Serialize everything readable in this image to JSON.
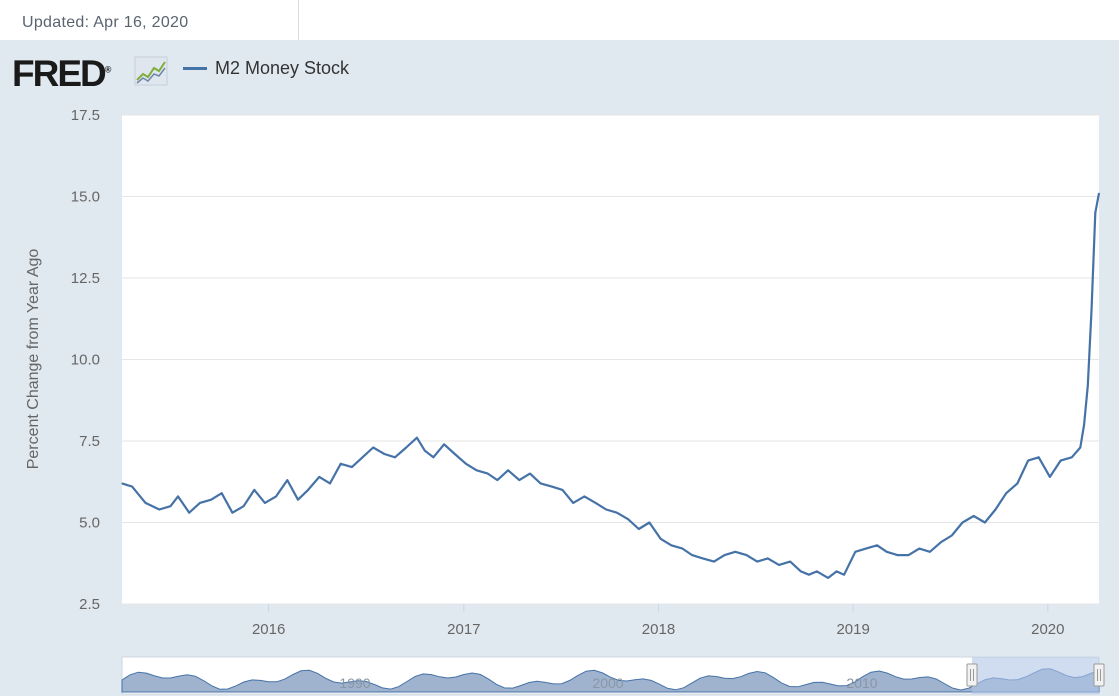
{
  "header": {
    "updated_text": "Updated: Apr 16, 2020"
  },
  "logo": {
    "text": "FRED",
    "registered": "®"
  },
  "icons": {
    "logo_graph": "line-graph-icon",
    "range_handle_left": "range-handle-icon",
    "range_handle_right": "range-handle-icon"
  },
  "colors": {
    "series": "#4572a7",
    "plot_background": "#ffffff",
    "page_background": "#e1e9f0",
    "grid": "#e6e6e6",
    "navigator_fill": "#9fb3cf",
    "navigator_selection": "#b0c4e6"
  },
  "chart_data": {
    "type": "line",
    "title": "",
    "ylabel": "Percent Change from Year Ago",
    "xlabel": "",
    "ylim": [
      2.5,
      17.5
    ],
    "xlim": [
      "2015-04-01",
      "2020-04-06"
    ],
    "grid": true,
    "legend_position": "top-left",
    "y_ticks": [
      "2.5",
      "5.0",
      "7.5",
      "10.0",
      "12.5",
      "15.0",
      "17.5"
    ],
    "x_ticks": [
      "2016",
      "2017",
      "2018",
      "2019",
      "2020"
    ],
    "series": [
      {
        "name": "M2 Money Stock",
        "x": [
          "2015-04-01",
          "2015-04-20",
          "2015-05-15",
          "2015-06-10",
          "2015-07-01",
          "2015-07-15",
          "2015-08-05",
          "2015-08-25",
          "2015-09-15",
          "2015-10-05",
          "2015-10-25",
          "2015-11-15",
          "2015-12-05",
          "2015-12-25",
          "2016-01-15",
          "2016-02-05",
          "2016-02-25",
          "2016-03-15",
          "2016-04-05",
          "2016-04-25",
          "2016-05-15",
          "2016-06-05",
          "2016-06-25",
          "2016-07-15",
          "2016-08-05",
          "2016-08-25",
          "2016-09-15",
          "2016-10-05",
          "2016-10-20",
          "2016-11-05",
          "2016-11-25",
          "2016-12-15",
          "2017-01-05",
          "2017-01-25",
          "2017-02-15",
          "2017-03-05",
          "2017-03-25",
          "2017-04-15",
          "2017-05-05",
          "2017-05-25",
          "2017-06-15",
          "2017-07-05",
          "2017-07-25",
          "2017-08-15",
          "2017-09-05",
          "2017-09-25",
          "2017-10-15",
          "2017-11-05",
          "2017-11-25",
          "2017-12-15",
          "2018-01-05",
          "2018-01-25",
          "2018-02-15",
          "2018-03-05",
          "2018-03-25",
          "2018-04-15",
          "2018-05-05",
          "2018-05-25",
          "2018-06-15",
          "2018-07-05",
          "2018-07-25",
          "2018-08-15",
          "2018-09-05",
          "2018-09-25",
          "2018-10-10",
          "2018-10-25",
          "2018-11-15",
          "2018-12-01",
          "2018-12-15",
          "2019-01-05",
          "2019-01-25",
          "2019-02-15",
          "2019-03-05",
          "2019-03-25",
          "2019-04-15",
          "2019-05-05",
          "2019-05-25",
          "2019-06-15",
          "2019-07-05",
          "2019-07-25",
          "2019-08-15",
          "2019-09-05",
          "2019-09-25",
          "2019-10-15",
          "2019-11-05",
          "2019-11-25",
          "2019-12-15",
          "2020-01-05",
          "2020-01-25",
          "2020-02-15",
          "2020-03-02",
          "2020-03-09",
          "2020-03-16",
          "2020-03-23",
          "2020-03-30",
          "2020-04-06"
        ],
        "y": [
          6.2,
          6.1,
          5.6,
          5.4,
          5.5,
          5.8,
          5.3,
          5.6,
          5.7,
          5.9,
          5.3,
          5.5,
          6.0,
          5.6,
          5.8,
          6.3,
          5.7,
          6.0,
          6.4,
          6.2,
          6.8,
          6.7,
          7.0,
          7.3,
          7.1,
          7.0,
          7.3,
          7.6,
          7.2,
          7.0,
          7.4,
          7.1,
          6.8,
          6.6,
          6.5,
          6.3,
          6.6,
          6.3,
          6.5,
          6.2,
          6.1,
          6.0,
          5.6,
          5.8,
          5.6,
          5.4,
          5.3,
          5.1,
          4.8,
          5.0,
          4.5,
          4.3,
          4.2,
          4.0,
          3.9,
          3.8,
          4.0,
          4.1,
          4.0,
          3.8,
          3.9,
          3.7,
          3.8,
          3.5,
          3.4,
          3.5,
          3.3,
          3.5,
          3.4,
          4.1,
          4.2,
          4.3,
          4.1,
          4.0,
          4.0,
          4.2,
          4.1,
          4.4,
          4.6,
          5.0,
          5.2,
          5.0,
          5.4,
          5.9,
          6.2,
          6.9,
          7.0,
          6.4,
          6.9,
          7.0,
          7.3,
          8.0,
          9.2,
          11.5,
          14.5,
          15.1
        ]
      }
    ]
  },
  "navigator": {
    "x_labels": [
      "1990",
      "2000",
      "2010"
    ]
  }
}
